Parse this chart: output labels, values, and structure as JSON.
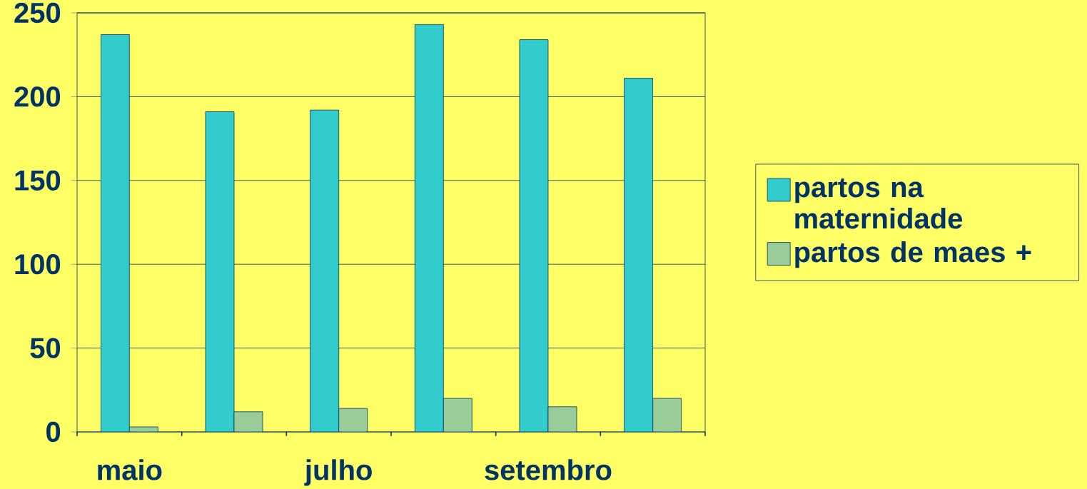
{
  "chart_data": {
    "type": "bar",
    "categories": [
      "maio",
      null,
      "julho",
      null,
      "setembro",
      null
    ],
    "series": [
      {
        "name": "partos na maternidade",
        "color": "#33cccc",
        "values": [
          237,
          191,
          192,
          243,
          234,
          211
        ]
      },
      {
        "name": "partos de maes +",
        "color": "#99cc99",
        "values": [
          3,
          12,
          14,
          20,
          15,
          20
        ]
      }
    ],
    "ylim": [
      0,
      250
    ],
    "yticks": [
      0,
      50,
      100,
      150,
      200,
      250
    ],
    "grid": "y",
    "legend": "right"
  }
}
